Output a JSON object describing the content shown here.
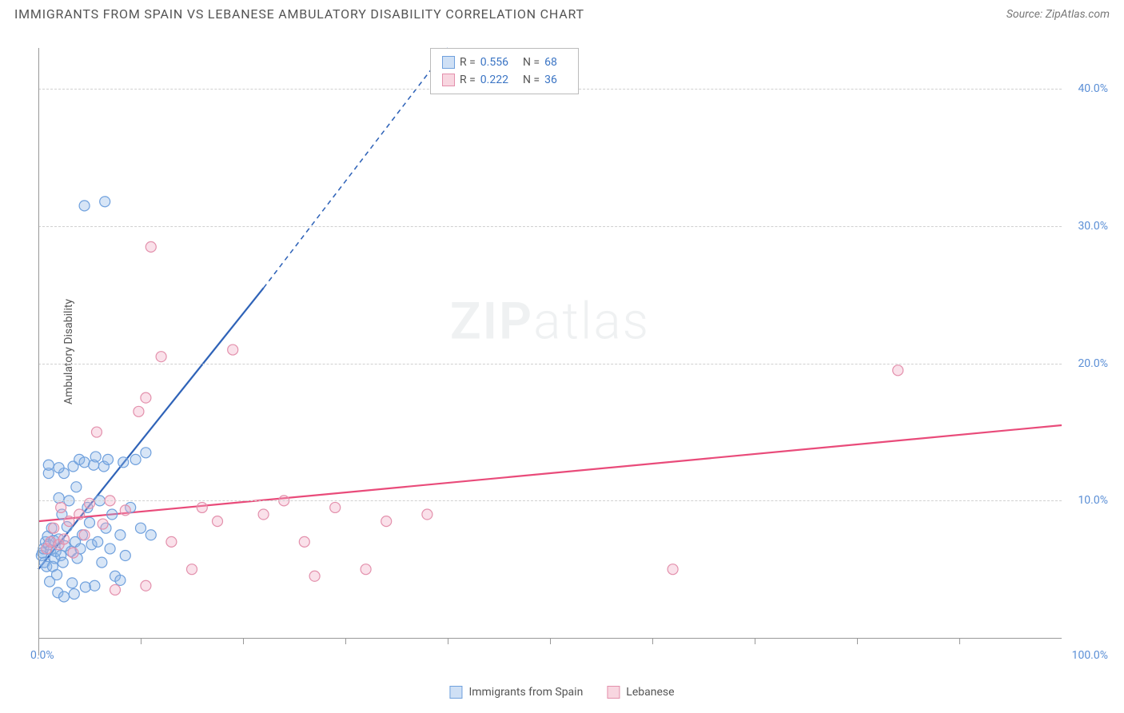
{
  "title": "IMMIGRANTS FROM SPAIN VS LEBANESE AMBULATORY DISABILITY CORRELATION CHART",
  "source_label": "Source: ZipAtlas.com",
  "watermark": {
    "bold": "ZIP",
    "light": "atlas"
  },
  "chart": {
    "type": "scatter",
    "y_axis_label": "Ambulatory Disability",
    "xlim": [
      0,
      100
    ],
    "ylim": [
      0,
      43
    ],
    "x_start_label": "0.0%",
    "x_end_label": "100.0%",
    "y_ticks": [
      {
        "value": 10,
        "label": "10.0%"
      },
      {
        "value": 20,
        "label": "20.0%"
      },
      {
        "value": 30,
        "label": "30.0%"
      },
      {
        "value": 40,
        "label": "40.0%"
      }
    ],
    "x_tick_positions": [
      0,
      10,
      20,
      30,
      40,
      50,
      60,
      70,
      80,
      90
    ],
    "grid_color": "#d0d0d0",
    "axis_color": "#999999",
    "background_color": "#ffffff",
    "marker_radius": 6.5,
    "marker_stroke_width": 1.2,
    "legend_box": {
      "rows": [
        {
          "swatch_fill": "#cfe0f5",
          "swatch_stroke": "#6fa0dd",
          "r_label": "R =",
          "r_value": "0.556",
          "n_label": "N =",
          "n_value": "68"
        },
        {
          "swatch_fill": "#f8d6e0",
          "swatch_stroke": "#e390ac",
          "r_label": "R =",
          "r_value": "0.222",
          "n_label": "N =",
          "n_value": "36"
        }
      ]
    },
    "x_legend": [
      {
        "swatch_fill": "#cfe0f5",
        "swatch_stroke": "#6fa0dd",
        "label": "Immigrants from Spain"
      },
      {
        "swatch_fill": "#f8d6e0",
        "swatch_stroke": "#e390ac",
        "label": "Lebanese"
      }
    ],
    "series": [
      {
        "name": "Immigrants from Spain",
        "fill": "rgba(140,180,230,0.35)",
        "stroke": "#6fa0dd",
        "trend": {
          "color": "#2f63b8",
          "width": 2.2,
          "x1": 0,
          "y1": 5,
          "x_solid_end": 22,
          "y_solid_end": 25.5,
          "x2": 40,
          "y2": 43
        },
        "points": [
          [
            0.3,
            6.0
          ],
          [
            0.4,
            6.2
          ],
          [
            0.5,
            6.5
          ],
          [
            0.6,
            5.5
          ],
          [
            0.7,
            7.0
          ],
          [
            0.8,
            5.2
          ],
          [
            0.9,
            7.4
          ],
          [
            1.0,
            6.8
          ],
          [
            1.1,
            4.1
          ],
          [
            1.2,
            6.4
          ],
          [
            1.3,
            8.0
          ],
          [
            1.4,
            5.2
          ],
          [
            1.5,
            7.1
          ],
          [
            1.6,
            5.8
          ],
          [
            1.7,
            6.3
          ],
          [
            1.8,
            4.6
          ],
          [
            1.9,
            3.3
          ],
          [
            2.0,
            7.2
          ],
          [
            2.2,
            6.0
          ],
          [
            2.3,
            9.0
          ],
          [
            2.4,
            5.5
          ],
          [
            2.5,
            12.0
          ],
          [
            2.6,
            6.7
          ],
          [
            2.8,
            8.1
          ],
          [
            3.0,
            10.0
          ],
          [
            3.2,
            6.3
          ],
          [
            3.3,
            4.0
          ],
          [
            3.4,
            12.5
          ],
          [
            3.6,
            7.0
          ],
          [
            3.7,
            11.0
          ],
          [
            3.8,
            5.8
          ],
          [
            4.0,
            13.0
          ],
          [
            4.1,
            6.5
          ],
          [
            4.3,
            7.5
          ],
          [
            4.5,
            12.8
          ],
          [
            4.6,
            3.7
          ],
          [
            4.8,
            9.5
          ],
          [
            5.0,
            8.4
          ],
          [
            5.2,
            6.8
          ],
          [
            5.4,
            12.6
          ],
          [
            5.6,
            13.2
          ],
          [
            5.8,
            7.0
          ],
          [
            6.0,
            10.0
          ],
          [
            6.2,
            5.5
          ],
          [
            6.4,
            12.5
          ],
          [
            6.6,
            8.0
          ],
          [
            6.8,
            13.0
          ],
          [
            7.0,
            6.5
          ],
          [
            7.2,
            9.0
          ],
          [
            7.5,
            4.5
          ],
          [
            8.0,
            7.5
          ],
          [
            8.3,
            12.8
          ],
          [
            8.5,
            6.0
          ],
          [
            9.0,
            9.5
          ],
          [
            9.5,
            13.0
          ],
          [
            10.0,
            8.0
          ],
          [
            10.5,
            13.5
          ],
          [
            11.0,
            7.5
          ],
          [
            4.5,
            31.5
          ],
          [
            6.5,
            31.8
          ],
          [
            2.5,
            3.0
          ],
          [
            3.5,
            3.2
          ],
          [
            5.5,
            3.8
          ],
          [
            8.0,
            4.2
          ],
          [
            1.0,
            12.0
          ],
          [
            1.0,
            12.6
          ],
          [
            2.0,
            12.4
          ],
          [
            2.0,
            10.2
          ]
        ]
      },
      {
        "name": "Lebanese",
        "fill": "rgba(240,170,195,0.35)",
        "stroke": "#e390ac",
        "trend": {
          "color": "#e94b7a",
          "width": 2.2,
          "x1": 0,
          "y1": 8.5,
          "x2": 100,
          "y2": 15.5
        },
        "points": [
          [
            0.8,
            6.5
          ],
          [
            1.2,
            7.0
          ],
          [
            1.5,
            8.0
          ],
          [
            2.0,
            6.8
          ],
          [
            2.2,
            9.5
          ],
          [
            2.5,
            7.2
          ],
          [
            3.0,
            8.5
          ],
          [
            3.4,
            6.2
          ],
          [
            4.0,
            9.0
          ],
          [
            4.5,
            7.5
          ],
          [
            5.0,
            9.8
          ],
          [
            5.7,
            15.0
          ],
          [
            6.3,
            8.3
          ],
          [
            7.0,
            10.0
          ],
          [
            8.5,
            9.3
          ],
          [
            9.8,
            16.5
          ],
          [
            10.5,
            17.5
          ],
          [
            11.0,
            28.5
          ],
          [
            12.0,
            20.5
          ],
          [
            13.0,
            7.0
          ],
          [
            15.0,
            5.0
          ],
          [
            16.0,
            9.5
          ],
          [
            17.5,
            8.5
          ],
          [
            19.0,
            21.0
          ],
          [
            22.0,
            9.0
          ],
          [
            24.0,
            10.0
          ],
          [
            26.0,
            7.0
          ],
          [
            27.0,
            4.5
          ],
          [
            29.0,
            9.5
          ],
          [
            34.0,
            8.5
          ],
          [
            32.0,
            5.0
          ],
          [
            38.0,
            9.0
          ],
          [
            62.0,
            5.0
          ],
          [
            84.0,
            19.5
          ],
          [
            7.5,
            3.5
          ],
          [
            10.5,
            3.8
          ]
        ]
      }
    ]
  }
}
